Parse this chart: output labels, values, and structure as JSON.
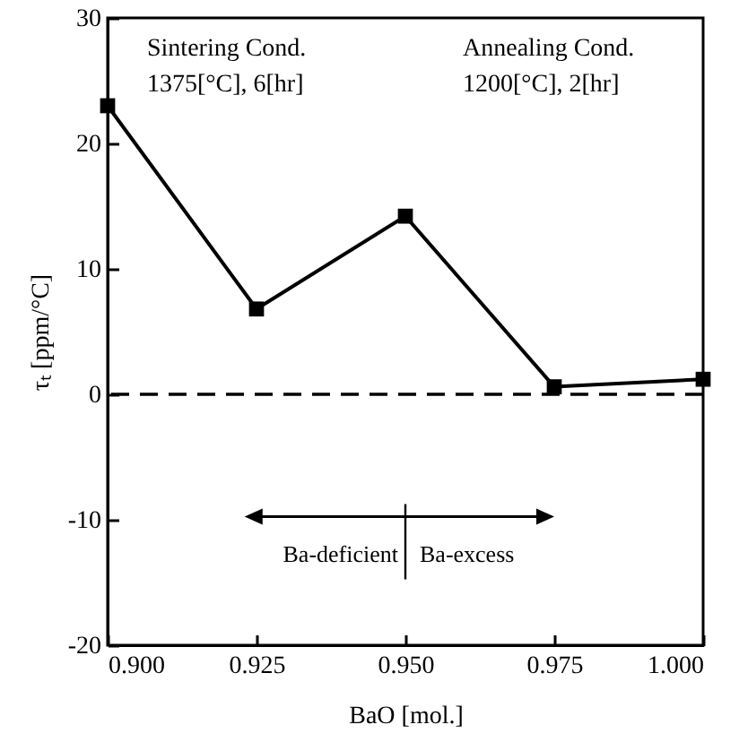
{
  "chart_data": {
    "type": "line",
    "xlabel": "BaO [mol.]",
    "ylabel": "τₜ [ppm/°C]",
    "x": [
      0.9,
      0.925,
      0.95,
      0.975,
      1.0
    ],
    "series": [
      {
        "color": "#000000",
        "values": [
          23,
          6.8,
          14.2,
          0.6,
          1.2
        ]
      }
    ],
    "marker": "square",
    "line_style": "solid",
    "xlim": [
      0.9,
      1.0
    ],
    "xticks": [
      {
        "value": 0.9,
        "label": "0.900"
      },
      {
        "value": 0.925,
        "label": "0.925"
      },
      {
        "value": 0.95,
        "label": "0.950"
      },
      {
        "value": 0.975,
        "label": "0.975"
      },
      {
        "value": 1.0,
        "label": "1.000"
      }
    ],
    "ylim": [
      -20,
      30
    ],
    "yticks": [
      -20,
      -10,
      0,
      10,
      20,
      30
    ],
    "ref_lines": [
      {
        "axis": "y",
        "value": 0,
        "line_style": "dashed",
        "color": "#000000"
      }
    ],
    "annotations": [
      "Sintering Cond.",
      "1375[°C], 6[hr]",
      "Annealing Cond.",
      "1200[°C], 2[hr]",
      "Ba-deficient",
      "Ba-excess"
    ]
  }
}
